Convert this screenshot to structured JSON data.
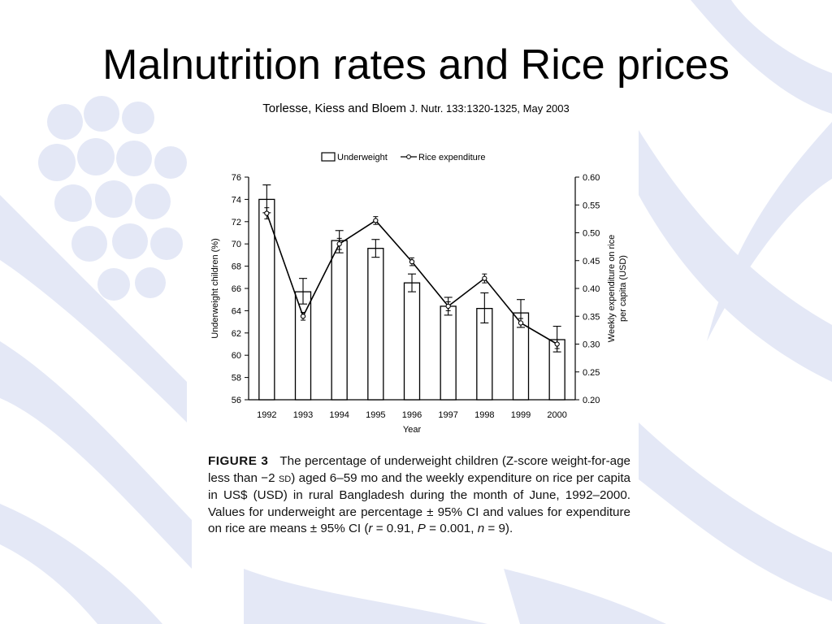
{
  "slide": {
    "title": "Malnutrition rates and Rice prices",
    "authors": "Torlesse, Kiess and Bloem",
    "journal": "J. Nutr. 133:1320-1325, May 2003"
  },
  "colors": {
    "background_motif": "#e4e8f6",
    "ink": "#000000"
  },
  "chart_data": {
    "type": "bar",
    "categories": [
      "1992",
      "1993",
      "1994",
      "1995",
      "1996",
      "1997",
      "1998",
      "1999",
      "2000"
    ],
    "xlabel": "Year",
    "legend": {
      "placement": "top",
      "items": [
        "Underweight",
        "Rice expenditure"
      ]
    },
    "series": [
      {
        "name": "Underweight",
        "type": "bar",
        "axis": "left",
        "values": [
          74.0,
          65.7,
          70.3,
          69.6,
          66.5,
          64.4,
          64.2,
          63.8,
          61.4
        ],
        "ci_low": [
          72.8,
          64.6,
          69.2,
          68.8,
          65.7,
          63.6,
          62.9,
          62.5,
          60.3
        ],
        "ci_high": [
          75.3,
          66.9,
          71.2,
          70.4,
          67.3,
          65.2,
          65.6,
          65.0,
          62.6
        ]
      },
      {
        "name": "Rice expenditure",
        "type": "line",
        "axis": "right",
        "values": [
          0.535,
          0.35,
          0.48,
          0.522,
          0.448,
          0.368,
          0.418,
          0.338,
          0.3
        ],
        "ci_low": [
          0.525,
          0.343,
          0.47,
          0.515,
          0.441,
          0.36,
          0.41,
          0.33,
          0.292
        ],
        "ci_high": [
          0.545,
          0.357,
          0.49,
          0.529,
          0.455,
          0.376,
          0.426,
          0.346,
          0.308
        ]
      }
    ],
    "y_left": {
      "label": "Underweight children (%)",
      "range": [
        56,
        76
      ],
      "ticks": [
        "56",
        "58",
        "60",
        "62",
        "64",
        "66",
        "68",
        "70",
        "72",
        "74",
        "76"
      ]
    },
    "y_right": {
      "label_lines": [
        "Weekly expenditure on rice",
        "per capita (USD)"
      ],
      "range": [
        0.2,
        0.6
      ],
      "ticks": [
        "0.20",
        "0.25",
        "0.30",
        "0.35",
        "0.40",
        "0.45",
        "0.50",
        "0.55",
        "0.60"
      ]
    },
    "grid": false
  },
  "caption": {
    "label": "FIGURE 3",
    "text_1": "The percentage of underweight children (Z-score weight-for-age less than −2 ",
    "text_sd": "SD",
    "text_2": ") aged 6–59 mo and the weekly expenditure on rice per capita in US$ (USD) in rural Bangladesh during the month of June, 1992–2000. Values for underweight are percentage ± 95% CI and values for expenditure on rice are means ± 95% CI (",
    "text_r": "r",
    "text_3": " = 0.91, ",
    "text_p": "P",
    "text_4": " = 0.001, ",
    "text_n": "n",
    "text_5": " = 9)."
  }
}
